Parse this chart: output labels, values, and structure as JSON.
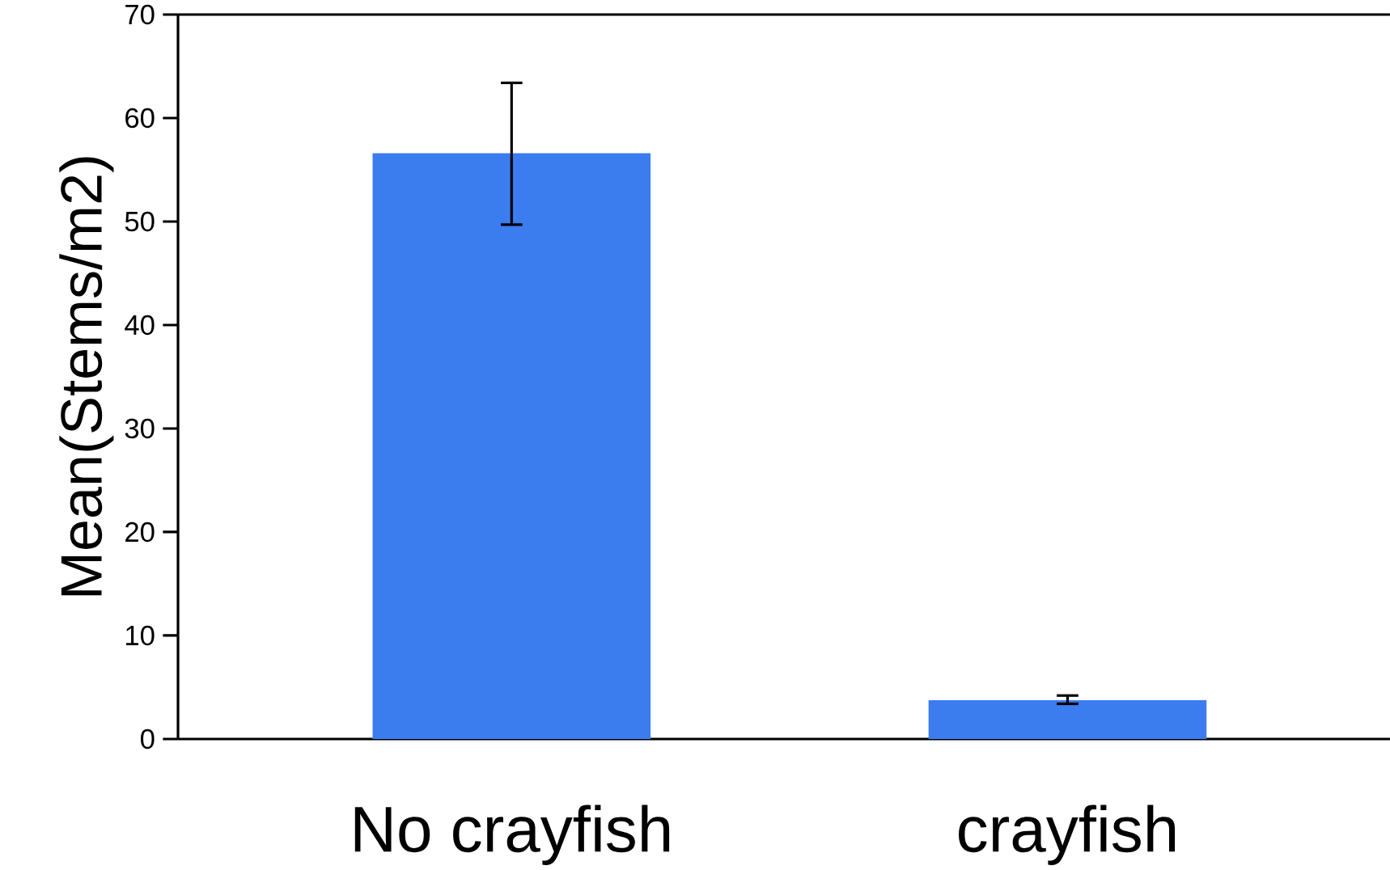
{
  "chart_data": {
    "type": "bar",
    "categories": [
      "No crayfish",
      "crayfish"
    ],
    "values": [
      56.6,
      3.75
    ],
    "errors": [
      [
        49.7,
        63.4
      ],
      [
        3.4,
        4.2
      ]
    ],
    "color": "#3b7cef",
    "ylabel": "Mean(Stems/m2)",
    "ylim": [
      0,
      70
    ],
    "yticks": [
      0,
      10,
      20,
      30,
      40,
      50,
      60,
      70
    ]
  }
}
